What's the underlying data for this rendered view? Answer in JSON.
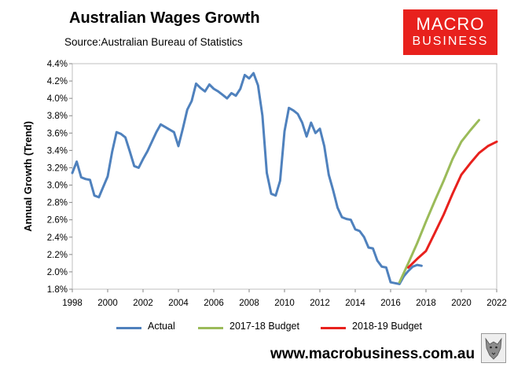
{
  "header": {
    "title": "Australian Wages Growth",
    "source": "Source:Australian Bureau of Statistics"
  },
  "logo": {
    "line1": "MACRO",
    "line2": "BUSINESS",
    "color": "#e8211d"
  },
  "footer": {
    "website": "www.macrobusiness.com.au"
  },
  "chart_data": {
    "type": "line",
    "ylabel": "Annual Growth (Trend)",
    "xlabel": "",
    "xlim": [
      1998,
      2022
    ],
    "ylim": [
      1.8,
      4.4
    ],
    "x_ticks": [
      "1998",
      "2000",
      "2002",
      "2004",
      "2006",
      "2008",
      "2010",
      "2012",
      "2014",
      "2016",
      "2018",
      "2020",
      "2022"
    ],
    "x_tick_values": [
      1998,
      2000,
      2002,
      2004,
      2006,
      2008,
      2010,
      2012,
      2014,
      2016,
      2018,
      2020,
      2022
    ],
    "y_ticks": [
      "1.8%",
      "2.0%",
      "2.2%",
      "2.4%",
      "2.6%",
      "2.8%",
      "3.0%",
      "3.2%",
      "3.4%",
      "3.6%",
      "3.8%",
      "4.0%",
      "4.2%",
      "4.4%"
    ],
    "y_tick_values": [
      1.8,
      2.0,
      2.2,
      2.4,
      2.6,
      2.8,
      3.0,
      3.2,
      3.4,
      3.6,
      3.8,
      4.0,
      4.2,
      4.4
    ],
    "grid": false,
    "legend_position": "bottom",
    "series": [
      {
        "name": "Actual",
        "color": "#4f81bd",
        "x": [
          1998.0,
          1998.25,
          1998.5,
          1998.75,
          1999.0,
          1999.25,
          1999.5,
          1999.75,
          2000.0,
          2000.25,
          2000.5,
          2000.75,
          2001.0,
          2001.25,
          2001.5,
          2001.75,
          2002.0,
          2002.25,
          2002.5,
          2002.75,
          2003.0,
          2003.25,
          2003.5,
          2003.75,
          2004.0,
          2004.25,
          2004.5,
          2004.75,
          2005.0,
          2005.25,
          2005.5,
          2005.75,
          2006.0,
          2006.25,
          2006.5,
          2006.75,
          2007.0,
          2007.25,
          2007.5,
          2007.75,
          2008.0,
          2008.25,
          2008.5,
          2008.75,
          2009.0,
          2009.25,
          2009.5,
          2009.75,
          2010.0,
          2010.25,
          2010.5,
          2010.75,
          2011.0,
          2011.25,
          2011.5,
          2011.75,
          2012.0,
          2012.25,
          2012.5,
          2012.75,
          2013.0,
          2013.25,
          2013.5,
          2013.75,
          2014.0,
          2014.25,
          2014.5,
          2014.75,
          2015.0,
          2015.25,
          2015.5,
          2015.75,
          2016.0,
          2016.25,
          2016.5,
          2016.75,
          2017.0,
          2017.25,
          2017.5,
          2017.75
        ],
        "values": [
          3.14,
          3.27,
          3.09,
          3.07,
          3.06,
          2.88,
          2.86,
          2.98,
          3.1,
          3.38,
          3.61,
          3.59,
          3.55,
          3.39,
          3.22,
          3.2,
          3.3,
          3.39,
          3.5,
          3.61,
          3.7,
          3.67,
          3.64,
          3.61,
          3.45,
          3.65,
          3.87,
          3.97,
          4.17,
          4.12,
          4.08,
          4.16,
          4.11,
          4.08,
          4.04,
          4.0,
          4.06,
          4.03,
          4.11,
          4.27,
          4.23,
          4.29,
          4.15,
          3.8,
          3.14,
          2.9,
          2.88,
          3.05,
          3.62,
          3.89,
          3.86,
          3.82,
          3.72,
          3.56,
          3.72,
          3.6,
          3.65,
          3.45,
          3.12,
          2.94,
          2.74,
          2.63,
          2.61,
          2.6,
          2.49,
          2.47,
          2.4,
          2.28,
          2.27,
          2.13,
          2.06,
          2.05,
          1.88,
          1.87,
          1.86,
          1.95,
          2.01,
          2.06,
          2.08,
          2.07
        ]
      },
      {
        "name": "2017-18 Budget",
        "color": "#9bbb59",
        "x": [
          2016.5,
          2017.0,
          2017.5,
          2018.0,
          2018.5,
          2019.0,
          2019.5,
          2020.0,
          2020.5,
          2021.0
        ],
        "values": [
          1.88,
          2.1,
          2.33,
          2.58,
          2.82,
          3.05,
          3.3,
          3.5,
          3.63,
          3.75
        ]
      },
      {
        "name": "2018-19 Budget",
        "color": "#e8211d",
        "x": [
          2017.0,
          2017.5,
          2018.0,
          2018.5,
          2019.0,
          2019.5,
          2020.0,
          2020.5,
          2021.0,
          2021.5,
          2022.0
        ],
        "values": [
          2.05,
          2.15,
          2.24,
          2.45,
          2.66,
          2.9,
          3.12,
          3.25,
          3.37,
          3.45,
          3.5
        ]
      }
    ]
  }
}
